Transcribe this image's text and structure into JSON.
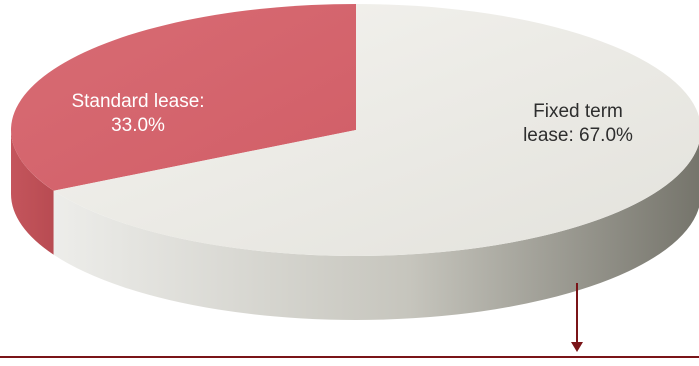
{
  "chart_data": {
    "type": "pie",
    "title": "",
    "slices": [
      {
        "label": "Standard lease",
        "value": 33.0,
        "color": "#d4636b"
      },
      {
        "label": "Fixed term lease",
        "value": 67.0,
        "color": "#ecebe5"
      }
    ],
    "labels": {
      "standard_line1": "Standard lease:",
      "standard_line2": "33.0%",
      "fixed_line1": "Fixed term",
      "fixed_line2": "lease: 67.0%"
    },
    "style": "3d",
    "callout": {
      "color": "#7a1418"
    }
  }
}
